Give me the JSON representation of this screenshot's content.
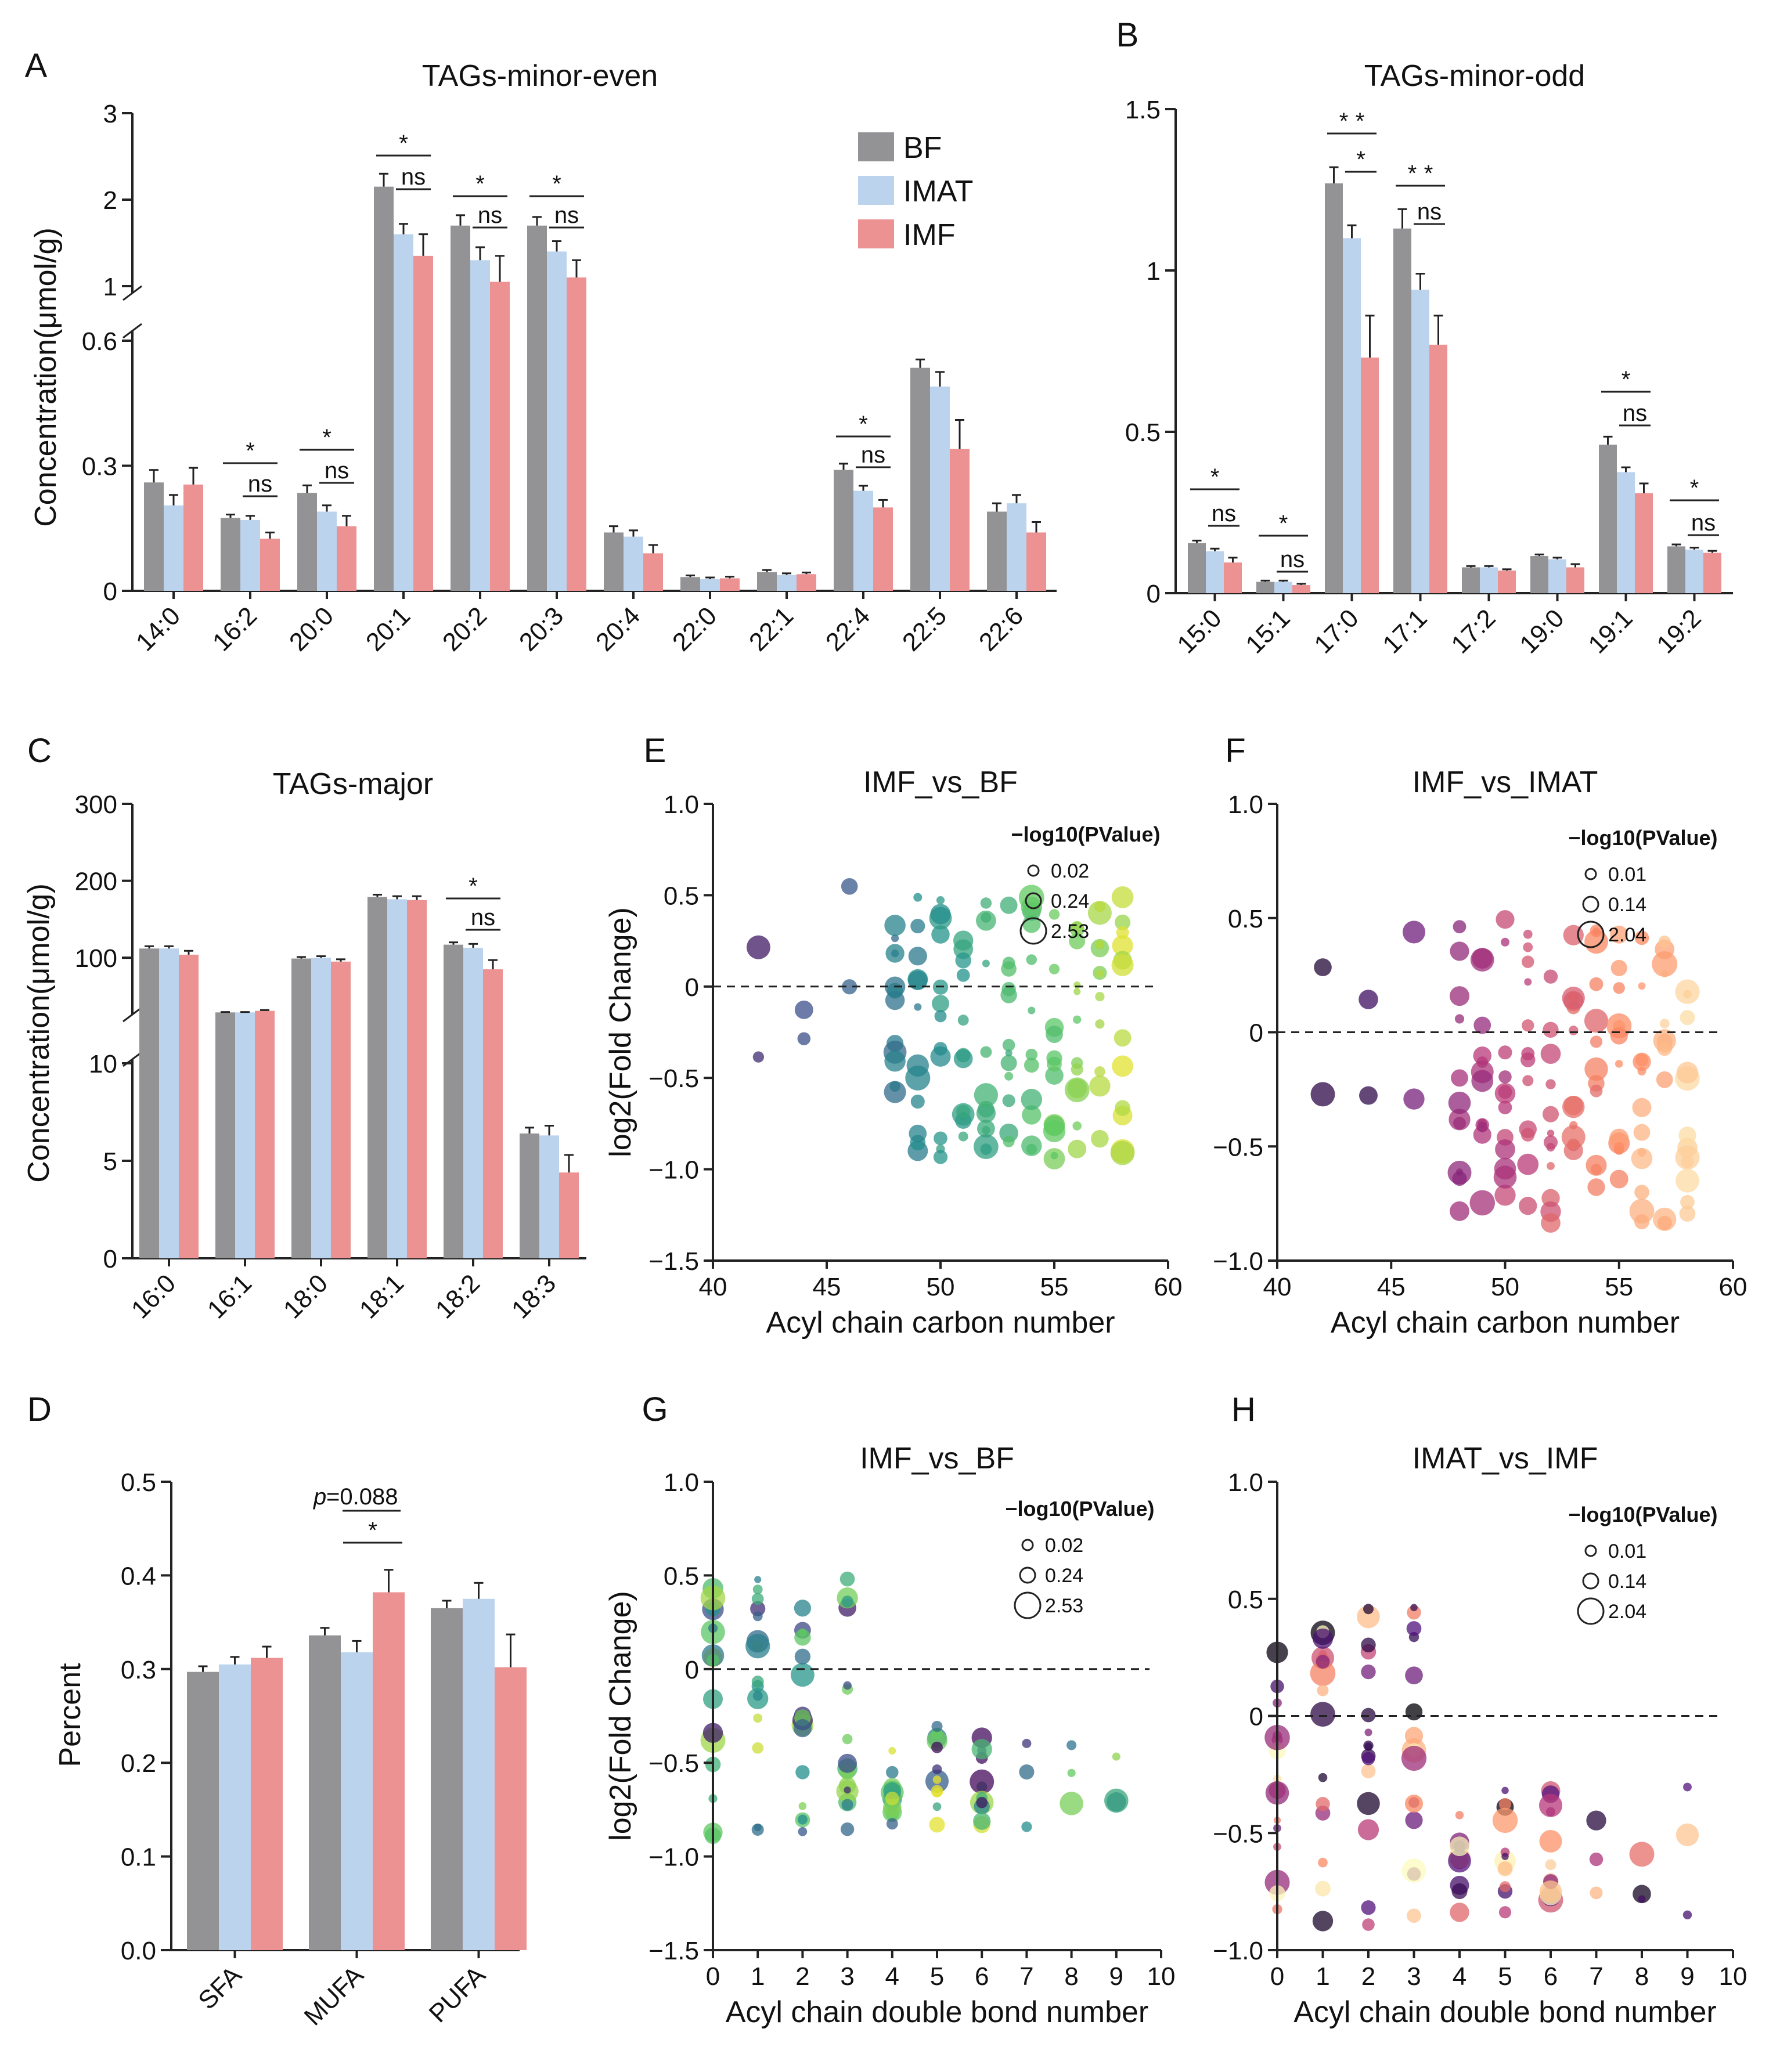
{
  "colors": {
    "BF": "#939396",
    "IMAT": "#bcd3ee",
    "IMF": "#ec9292"
  },
  "legend": [
    "BF",
    "IMAT",
    "IMF"
  ],
  "chart_data": [
    {
      "id": "A",
      "type": "bar",
      "panel_label": "A",
      "title": "TAGs-minor-even",
      "ylabel": "Concentration(μmol/g)",
      "categories": [
        "14:0",
        "16:2",
        "20:0",
        "20:1",
        "20:2",
        "20:3",
        "20:4",
        "22:0",
        "22:1",
        "22:4",
        "22:5",
        "22:6"
      ],
      "series": [
        {
          "name": "BF",
          "values": [
            0.26,
            0.175,
            0.235,
            2.15,
            1.7,
            1.7,
            0.14,
            0.033,
            0.045,
            0.29,
            0.535,
            0.19
          ],
          "err": [
            0.03,
            0.008,
            0.018,
            0.15,
            0.12,
            0.1,
            0.015,
            0.004,
            0.005,
            0.015,
            0.02,
            0.02
          ]
        },
        {
          "name": "IMAT",
          "values": [
            0.205,
            0.17,
            0.19,
            1.6,
            1.3,
            1.4,
            0.13,
            0.028,
            0.038,
            0.24,
            0.49,
            0.21
          ],
          "err": [
            0.025,
            0.01,
            0.015,
            0.12,
            0.15,
            0.12,
            0.015,
            0.004,
            0.004,
            0.012,
            0.035,
            0.02
          ]
        },
        {
          "name": "IMF",
          "values": [
            0.255,
            0.125,
            0.155,
            1.35,
            1.05,
            1.1,
            0.09,
            0.03,
            0.04,
            0.2,
            0.34,
            0.14
          ],
          "err": [
            0.04,
            0.015,
            0.025,
            0.25,
            0.3,
            0.2,
            0.02,
            0.004,
            0.004,
            0.018,
            0.07,
            0.025
          ]
        }
      ],
      "ylim_lower": [
        0,
        0.6
      ],
      "ylim_upper": [
        1,
        3
      ],
      "yticks_lower": [
        "0",
        "0.3",
        "0.6"
      ],
      "yticks_upper": [
        "1",
        "2",
        "3"
      ],
      "significance": [
        {
          "cat": 2,
          "label": "*",
          "from": "BF",
          "to": "IMF"
        },
        {
          "cat": 2,
          "label": "ns",
          "from": "IMAT",
          "to": "IMF"
        }
      ],
      "sig_labels": {
        "star": "*",
        "ns": "ns"
      }
    },
    {
      "id": "B",
      "type": "bar",
      "panel_label": "B",
      "title": "TAGs-minor-odd",
      "categories": [
        "15:0",
        "15:1",
        "17:0",
        "17:1",
        "17:2",
        "19:0",
        "19:1",
        "19:2"
      ],
      "series": [
        {
          "name": "BF",
          "values": [
            0.155,
            0.035,
            1.27,
            1.13,
            0.08,
            0.115,
            0.46,
            0.145
          ],
          "err": [
            0.008,
            0.004,
            0.05,
            0.06,
            0.004,
            0.005,
            0.025,
            0.006
          ]
        },
        {
          "name": "IMAT",
          "values": [
            0.13,
            0.035,
            1.1,
            0.94,
            0.08,
            0.105,
            0.375,
            0.135
          ],
          "err": [
            0.008,
            0.004,
            0.04,
            0.05,
            0.004,
            0.005,
            0.015,
            0.006
          ]
        },
        {
          "name": "IMF",
          "values": [
            0.095,
            0.025,
            0.73,
            0.77,
            0.07,
            0.08,
            0.31,
            0.125
          ],
          "err": [
            0.015,
            0.004,
            0.13,
            0.09,
            0.004,
            0.01,
            0.03,
            0.006
          ]
        }
      ],
      "ylim": [
        0,
        1.5
      ],
      "yticks": [
        "0",
        "0.5",
        "1",
        "1.5"
      ]
    },
    {
      "id": "C",
      "type": "bar",
      "panel_label": "C",
      "title": "TAGs-major",
      "ylabel": "Concentration(μmol/g)",
      "categories": [
        "16:0",
        "16:1",
        "18:0",
        "18:1",
        "18:2",
        "18:3"
      ],
      "series": [
        {
          "name": "BF",
          "values": [
            112,
            29,
            99,
            179,
            117,
            6.4
          ],
          "err": [
            3,
            0.5,
            2,
            3,
            3,
            0.3
          ]
        },
        {
          "name": "IMAT",
          "values": [
            112,
            29,
            100,
            176,
            113,
            6.3
          ],
          "err": [
            3,
            0.5,
            2,
            4,
            5,
            0.5
          ]
        },
        {
          "name": "IMF",
          "values": [
            104,
            31,
            95,
            175,
            85,
            4.4
          ],
          "err": [
            5,
            1,
            3,
            5,
            12,
            0.9
          ]
        }
      ],
      "ylim_lower": [
        0,
        10
      ],
      "ylim_upper": [
        30,
        300
      ],
      "yticks_lower": [
        "0",
        "5",
        "10"
      ],
      "yticks_upper": [
        "100",
        "200",
        "300"
      ]
    },
    {
      "id": "D",
      "type": "bar",
      "panel_label": "D",
      "ylabel": "Percent",
      "categories": [
        "SFA",
        "MUFA",
        "PUFA"
      ],
      "series": [
        {
          "name": "BF",
          "values": [
            0.297,
            0.336,
            0.365
          ],
          "err": [
            0.006,
            0.008,
            0.008
          ]
        },
        {
          "name": "IMAT",
          "values": [
            0.305,
            0.318,
            0.375
          ],
          "err": [
            0.008,
            0.012,
            0.017
          ]
        },
        {
          "name": "IMF",
          "values": [
            0.312,
            0.382,
            0.302
          ],
          "err": [
            0.012,
            0.024,
            0.035
          ]
        }
      ],
      "ylim": [
        0,
        0.5
      ],
      "yticks": [
        "0.0",
        "0.1",
        "0.2",
        "0.3",
        "0.4",
        "0.5"
      ],
      "annotation_p": "p",
      "annotation": "=0.088"
    },
    {
      "id": "E",
      "type": "scatter",
      "panel_label": "E",
      "title": "IMF_vs_BF",
      "xlabel": "Acyl chain carbon number",
      "ylabel": "log2(Fold Change)",
      "xlim": [
        40,
        60
      ],
      "ylim": [
        -1.5,
        1
      ],
      "xticks": [
        "40",
        "45",
        "50",
        "55",
        "60"
      ],
      "yticks": [
        "−1.5",
        "−1.0",
        "−0.5",
        "0",
        "0.5",
        "1.0"
      ],
      "size_legend_title": "−log10(PValue)",
      "size_legend": [
        "0.02",
        "0.24",
        "2.53"
      ],
      "colormap": "viridis",
      "seed": 11
    },
    {
      "id": "F",
      "type": "scatter",
      "panel_label": "F",
      "title": "IMF_vs_IMAT",
      "xlabel": "Acyl chain carbon number",
      "xlim": [
        40,
        60
      ],
      "ylim": [
        -1,
        1
      ],
      "xticks": [
        "40",
        "45",
        "50",
        "55",
        "60"
      ],
      "yticks": [
        "−1.0",
        "−0.5",
        "0",
        "0.5",
        "1.0"
      ],
      "size_legend_title": "−log10(PValue)",
      "size_legend": [
        "0.01",
        "0.14",
        "2.04"
      ],
      "colormap": "magma",
      "seed": 23
    },
    {
      "id": "G",
      "type": "scatter",
      "panel_label": "G",
      "title": "IMF_vs_BF",
      "xlabel": "Acyl chain double bond number",
      "ylabel": "log2(Fold Change)",
      "xlim": [
        0,
        10
      ],
      "ylim": [
        -1.5,
        1
      ],
      "xticks": [
        "0",
        "1",
        "2",
        "3",
        "4",
        "5",
        "6",
        "7",
        "8",
        "9",
        "10"
      ],
      "yticks": [
        "−1.5",
        "−1.0",
        "−0.5",
        "0",
        "0.5",
        "1.0"
      ],
      "size_legend_title": "−log10(PValue)",
      "size_legend": [
        "0.02",
        "0.24",
        "2.53"
      ],
      "colormap": "viridis",
      "seed": 37
    },
    {
      "id": "H",
      "type": "scatter",
      "panel_label": "H",
      "title": "IMAT_vs_IMF",
      "xlabel": "Acyl chain double bond number",
      "xlim": [
        0,
        10
      ],
      "ylim": [
        -1,
        1
      ],
      "xticks": [
        "0",
        "1",
        "2",
        "3",
        "4",
        "5",
        "6",
        "7",
        "8",
        "9",
        "10"
      ],
      "yticks": [
        "−1.0",
        "−0.5",
        "0",
        "0.5",
        "1.0"
      ],
      "size_legend_title": "−log10(PValue)",
      "size_legend": [
        "0.01",
        "0.14",
        "2.04"
      ],
      "colormap": "magma",
      "seed": 53
    }
  ]
}
